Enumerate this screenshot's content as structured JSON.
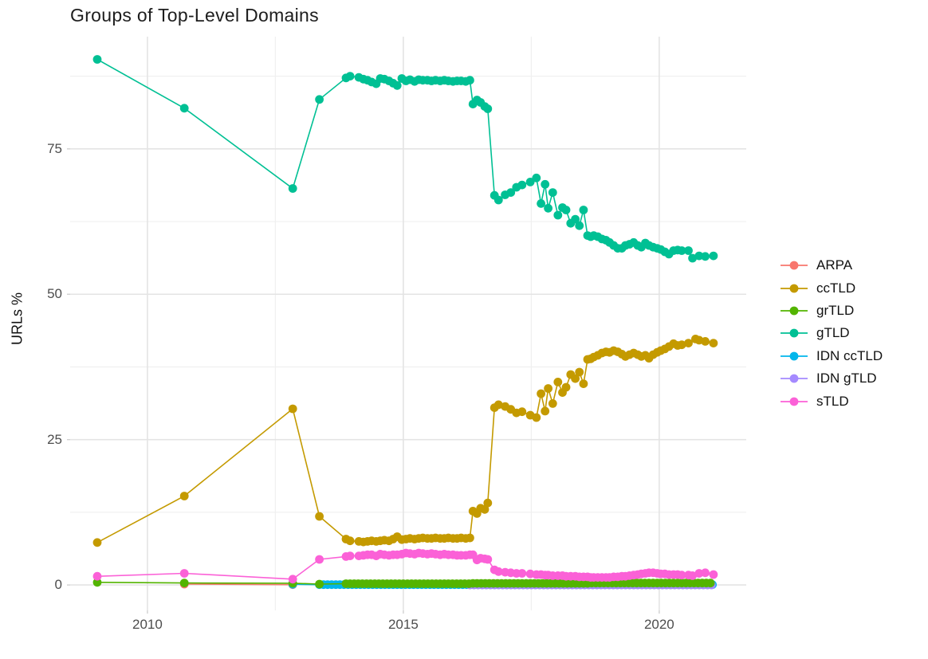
{
  "title": "Groups of Top-Level Domains",
  "axes": {
    "y_label": "URLs %"
  },
  "chart_data": {
    "type": "line",
    "title": "Groups of Top-Level Domains",
    "xlabel": "",
    "ylabel": "URLs %",
    "xlim": [
      2008.49,
      2021.7
    ],
    "ylim": [
      -4.37,
      94.3
    ],
    "x_ticks": [
      2010,
      2015,
      2020
    ],
    "x_minor": [
      2012.5,
      2017.5
    ],
    "y_ticks": [
      0,
      25,
      50,
      75
    ],
    "y_minor": [
      12.5,
      37.5,
      62.5,
      87.5
    ],
    "grid": true,
    "legend_position": "right",
    "legend_order": [
      "ARPA",
      "ccTLD",
      "grTLD",
      "gTLD",
      "IDN ccTLD",
      "IDN gTLD",
      "sTLD"
    ],
    "colors": {
      "ARPA": "#F8766D",
      "ccTLD": "#C49A00",
      "grTLD": "#53B400",
      "gTLD": "#00C094",
      "IDN ccTLD": "#00B6EB",
      "IDN gTLD": "#A58AFF",
      "sTLD": "#FB61D7"
    },
    "series": [
      {
        "name": "ARPA",
        "color": "#F8766D",
        "points": [
          [
            2010.72,
            0.15
          ],
          [
            2012.84,
            0.06
          ]
        ]
      },
      {
        "name": "IDN ccTLD",
        "color": "#00B6EB",
        "points": [
          [
            2012.84,
            0.12
          ]
        ],
        "runs": [
          {
            "from": 2013.36,
            "to": 2021.06,
            "step": 0.08,
            "value": 0.06
          }
        ]
      },
      {
        "name": "IDN gTLD",
        "color": "#A58AFF",
        "points": [],
        "runs": [
          {
            "from": 2016.3,
            "to": 2021.06,
            "step": 0.08,
            "value": 0.0
          }
        ]
      },
      {
        "name": "grTLD",
        "color": "#53B400",
        "points": [
          [
            2009.02,
            0.45
          ],
          [
            2010.72,
            0.35
          ],
          [
            2012.84,
            0.3
          ],
          [
            2013.36,
            0.15
          ]
        ],
        "runs": [
          {
            "from": 2013.88,
            "to": 2016.28,
            "step": 0.08,
            "value": 0.22
          },
          {
            "from": 2016.36,
            "to": 2018.6,
            "step": 0.08,
            "value": 0.28
          },
          {
            "from": 2018.68,
            "to": 2021.06,
            "step": 0.08,
            "value": 0.33
          }
        ]
      },
      {
        "name": "ccTLD",
        "color": "#C49A00",
        "points": [
          [
            2009.02,
            7.3
          ],
          [
            2010.72,
            15.3
          ],
          [
            2012.84,
            30.3
          ],
          [
            2013.36,
            11.8
          ],
          [
            2013.88,
            7.9
          ],
          [
            2013.96,
            7.6
          ],
          [
            2014.13,
            7.5
          ],
          [
            2014.22,
            7.4
          ],
          [
            2014.3,
            7.5
          ],
          [
            2014.38,
            7.6
          ],
          [
            2014.47,
            7.5
          ],
          [
            2014.55,
            7.6
          ],
          [
            2014.63,
            7.7
          ],
          [
            2014.72,
            7.6
          ],
          [
            2014.8,
            7.9
          ],
          [
            2014.88,
            8.3
          ],
          [
            2014.97,
            7.8
          ],
          [
            2015.05,
            7.9
          ],
          [
            2015.13,
            8.0
          ],
          [
            2015.22,
            7.9
          ],
          [
            2015.3,
            8.0
          ],
          [
            2015.38,
            8.1
          ],
          [
            2015.47,
            8.0
          ],
          [
            2015.55,
            8.0
          ],
          [
            2015.63,
            8.1
          ],
          [
            2015.72,
            8.0
          ],
          [
            2015.8,
            8.0
          ],
          [
            2015.88,
            8.1
          ],
          [
            2015.97,
            8.0
          ],
          [
            2016.05,
            8.0
          ],
          [
            2016.13,
            8.1
          ],
          [
            2016.22,
            8.0
          ],
          [
            2016.3,
            8.1
          ],
          [
            2016.36,
            12.7
          ],
          [
            2016.44,
            12.3
          ],
          [
            2016.51,
            13.2
          ],
          [
            2016.59,
            13.0
          ],
          [
            2016.65,
            14.1
          ],
          [
            2016.78,
            30.5
          ],
          [
            2016.86,
            31.0
          ],
          [
            2016.99,
            30.7
          ],
          [
            2017.1,
            30.2
          ],
          [
            2017.21,
            29.6
          ],
          [
            2017.32,
            29.8
          ],
          [
            2017.48,
            29.2
          ],
          [
            2017.6,
            28.8
          ],
          [
            2017.69,
            32.9
          ],
          [
            2017.77,
            29.9
          ],
          [
            2017.83,
            33.8
          ],
          [
            2017.92,
            31.2
          ],
          [
            2018.02,
            34.9
          ],
          [
            2018.11,
            33.1
          ],
          [
            2018.18,
            34.0
          ],
          [
            2018.27,
            36.2
          ],
          [
            2018.36,
            35.5
          ],
          [
            2018.44,
            36.6
          ],
          [
            2018.52,
            34.6
          ],
          [
            2018.6,
            38.8
          ],
          [
            2018.66,
            38.9
          ],
          [
            2018.72,
            39.2
          ],
          [
            2018.8,
            39.5
          ],
          [
            2018.88,
            39.9
          ],
          [
            2018.96,
            40.1
          ],
          [
            2019.03,
            40.0
          ],
          [
            2019.11,
            40.3
          ],
          [
            2019.19,
            40.1
          ],
          [
            2019.27,
            39.7
          ],
          [
            2019.34,
            39.3
          ],
          [
            2019.42,
            39.6
          ],
          [
            2019.5,
            39.9
          ],
          [
            2019.58,
            39.6
          ],
          [
            2019.65,
            39.3
          ],
          [
            2019.73,
            39.5
          ],
          [
            2019.8,
            39.0
          ],
          [
            2019.88,
            39.6
          ],
          [
            2019.96,
            40.0
          ],
          [
            2020.03,
            40.3
          ],
          [
            2020.11,
            40.6
          ],
          [
            2020.19,
            41.0
          ],
          [
            2020.28,
            41.5
          ],
          [
            2020.36,
            41.2
          ],
          [
            2020.44,
            41.3
          ],
          [
            2020.57,
            41.6
          ],
          [
            2020.71,
            42.3
          ],
          [
            2020.78,
            42.1
          ],
          [
            2020.9,
            41.9
          ],
          [
            2021.06,
            41.6
          ]
        ]
      },
      {
        "name": "gTLD",
        "color": "#00C094",
        "points": [
          [
            2009.02,
            90.4
          ],
          [
            2010.72,
            82.0
          ],
          [
            2012.84,
            68.2
          ],
          [
            2013.36,
            83.5
          ],
          [
            2013.88,
            87.2
          ],
          [
            2013.96,
            87.5
          ],
          [
            2014.13,
            87.3
          ],
          [
            2014.22,
            87.0
          ],
          [
            2014.3,
            86.8
          ],
          [
            2014.38,
            86.5
          ],
          [
            2014.47,
            86.2
          ],
          [
            2014.55,
            87.1
          ],
          [
            2014.63,
            87.0
          ],
          [
            2014.72,
            86.7
          ],
          [
            2014.8,
            86.3
          ],
          [
            2014.88,
            85.9
          ],
          [
            2014.97,
            87.1
          ],
          [
            2015.05,
            86.7
          ],
          [
            2015.13,
            86.9
          ],
          [
            2015.22,
            86.6
          ],
          [
            2015.3,
            86.9
          ],
          [
            2015.38,
            86.8
          ],
          [
            2015.47,
            86.8
          ],
          [
            2015.55,
            86.7
          ],
          [
            2015.63,
            86.8
          ],
          [
            2015.72,
            86.7
          ],
          [
            2015.8,
            86.8
          ],
          [
            2015.88,
            86.7
          ],
          [
            2015.97,
            86.6
          ],
          [
            2016.05,
            86.7
          ],
          [
            2016.13,
            86.7
          ],
          [
            2016.22,
            86.6
          ],
          [
            2016.3,
            86.8
          ],
          [
            2016.36,
            82.7
          ],
          [
            2016.44,
            83.4
          ],
          [
            2016.51,
            83.0
          ],
          [
            2016.59,
            82.3
          ],
          [
            2016.65,
            81.9
          ],
          [
            2016.78,
            67.0
          ],
          [
            2016.86,
            66.2
          ],
          [
            2016.99,
            67.1
          ],
          [
            2017.1,
            67.5
          ],
          [
            2017.21,
            68.4
          ],
          [
            2017.32,
            68.8
          ],
          [
            2017.48,
            69.3
          ],
          [
            2017.6,
            70.0
          ],
          [
            2017.69,
            65.6
          ],
          [
            2017.77,
            68.9
          ],
          [
            2017.83,
            64.8
          ],
          [
            2017.92,
            67.5
          ],
          [
            2018.02,
            63.6
          ],
          [
            2018.11,
            64.9
          ],
          [
            2018.18,
            64.5
          ],
          [
            2018.27,
            62.2
          ],
          [
            2018.36,
            62.9
          ],
          [
            2018.44,
            61.8
          ],
          [
            2018.52,
            64.5
          ],
          [
            2018.6,
            60.1
          ],
          [
            2018.66,
            59.9
          ],
          [
            2018.72,
            60.1
          ],
          [
            2018.8,
            59.9
          ],
          [
            2018.88,
            59.5
          ],
          [
            2018.96,
            59.3
          ],
          [
            2019.03,
            58.9
          ],
          [
            2019.11,
            58.4
          ],
          [
            2019.19,
            57.9
          ],
          [
            2019.27,
            57.9
          ],
          [
            2019.34,
            58.4
          ],
          [
            2019.42,
            58.6
          ],
          [
            2019.5,
            58.9
          ],
          [
            2019.58,
            58.4
          ],
          [
            2019.65,
            58.1
          ],
          [
            2019.73,
            58.8
          ],
          [
            2019.8,
            58.4
          ],
          [
            2019.88,
            58.1
          ],
          [
            2019.96,
            57.9
          ],
          [
            2020.03,
            57.7
          ],
          [
            2020.11,
            57.3
          ],
          [
            2020.19,
            56.9
          ],
          [
            2020.28,
            57.5
          ],
          [
            2020.36,
            57.6
          ],
          [
            2020.44,
            57.5
          ],
          [
            2020.57,
            57.5
          ],
          [
            2020.65,
            56.2
          ],
          [
            2020.78,
            56.6
          ],
          [
            2020.9,
            56.5
          ],
          [
            2021.06,
            56.6
          ]
        ]
      },
      {
        "name": "sTLD",
        "color": "#FB61D7",
        "points": [
          [
            2009.02,
            1.5
          ],
          [
            2010.72,
            2.0
          ],
          [
            2012.84,
            1.0
          ],
          [
            2013.36,
            4.4
          ],
          [
            2013.88,
            4.9
          ],
          [
            2013.96,
            5.0
          ],
          [
            2014.13,
            5.0
          ],
          [
            2014.22,
            5.1
          ],
          [
            2014.3,
            5.2
          ],
          [
            2014.38,
            5.2
          ],
          [
            2014.47,
            5.0
          ],
          [
            2014.55,
            5.3
          ],
          [
            2014.63,
            5.2
          ],
          [
            2014.72,
            5.1
          ],
          [
            2014.8,
            5.2
          ],
          [
            2014.88,
            5.2
          ],
          [
            2014.97,
            5.3
          ],
          [
            2015.05,
            5.5
          ],
          [
            2015.13,
            5.4
          ],
          [
            2015.22,
            5.3
          ],
          [
            2015.3,
            5.5
          ],
          [
            2015.38,
            5.4
          ],
          [
            2015.47,
            5.3
          ],
          [
            2015.55,
            5.4
          ],
          [
            2015.63,
            5.3
          ],
          [
            2015.72,
            5.2
          ],
          [
            2015.8,
            5.3
          ],
          [
            2015.88,
            5.2
          ],
          [
            2015.97,
            5.2
          ],
          [
            2016.05,
            5.1
          ],
          [
            2016.13,
            5.1
          ],
          [
            2016.22,
            5.1
          ],
          [
            2016.3,
            5.2
          ],
          [
            2016.36,
            5.2
          ],
          [
            2016.44,
            4.3
          ],
          [
            2016.51,
            4.6
          ],
          [
            2016.59,
            4.5
          ],
          [
            2016.65,
            4.4
          ],
          [
            2016.78,
            2.6
          ],
          [
            2016.86,
            2.3
          ],
          [
            2016.99,
            2.2
          ],
          [
            2017.1,
            2.1
          ],
          [
            2017.21,
            2.0
          ],
          [
            2017.32,
            2.0
          ],
          [
            2017.48,
            1.9
          ],
          [
            2017.6,
            1.8
          ],
          [
            2017.69,
            1.8
          ],
          [
            2017.77,
            1.7
          ],
          [
            2017.83,
            1.7
          ],
          [
            2017.92,
            1.6
          ],
          [
            2018.02,
            1.6
          ],
          [
            2018.11,
            1.6
          ],
          [
            2018.18,
            1.5
          ],
          [
            2018.27,
            1.5
          ],
          [
            2018.36,
            1.5
          ],
          [
            2018.44,
            1.4
          ],
          [
            2018.52,
            1.4
          ],
          [
            2018.6,
            1.4
          ],
          [
            2018.66,
            1.3
          ],
          [
            2018.72,
            1.3
          ],
          [
            2018.8,
            1.3
          ],
          [
            2018.88,
            1.3
          ],
          [
            2018.96,
            1.3
          ],
          [
            2019.03,
            1.3
          ],
          [
            2019.11,
            1.4
          ],
          [
            2019.19,
            1.4
          ],
          [
            2019.27,
            1.5
          ],
          [
            2019.34,
            1.5
          ],
          [
            2019.42,
            1.6
          ],
          [
            2019.5,
            1.7
          ],
          [
            2019.58,
            1.8
          ],
          [
            2019.65,
            1.9
          ],
          [
            2019.73,
            2.0
          ],
          [
            2019.8,
            2.1
          ],
          [
            2019.88,
            2.1
          ],
          [
            2019.96,
            2.0
          ],
          [
            2020.03,
            1.9
          ],
          [
            2020.11,
            1.9
          ],
          [
            2020.19,
            1.8
          ],
          [
            2020.28,
            1.8
          ],
          [
            2020.36,
            1.8
          ],
          [
            2020.44,
            1.7
          ],
          [
            2020.57,
            1.7
          ],
          [
            2020.65,
            1.6
          ],
          [
            2020.78,
            2.0
          ],
          [
            2020.9,
            2.1
          ],
          [
            2021.06,
            1.8
          ]
        ]
      }
    ]
  }
}
